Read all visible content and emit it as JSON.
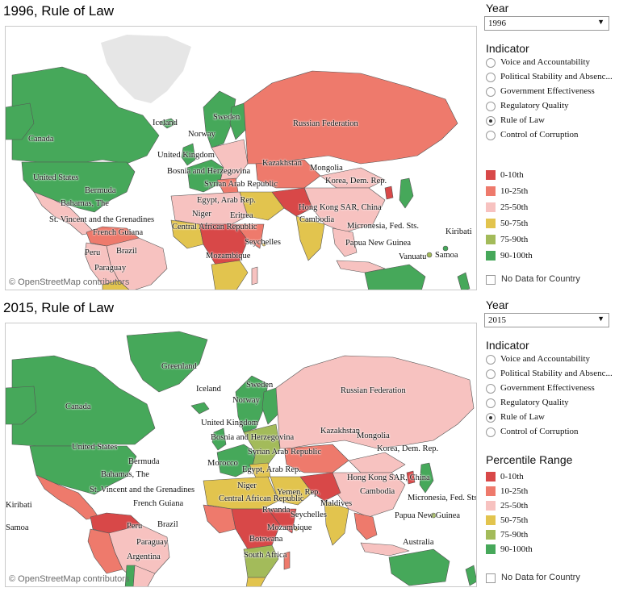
{
  "colors": {
    "p0_10": "#d84848",
    "p10_25": "#ee7a6c",
    "p25_50": "#f7c2c0",
    "p50_75": "#e2c44e",
    "p75_90": "#a3bb5a",
    "p90_100": "#46a85a",
    "ocean": "#ffffff",
    "greenland_1996": "#e6e6e6",
    "nodata": "#ffffff"
  },
  "attribution": "© OpenStreetMap contributors",
  "year_heading": "Year",
  "indicator_heading": "Indicator",
  "indicators": [
    "Voice and Accountability",
    "Political Stability and Absenc...",
    "Government Effectiveness",
    "Regulatory Quality",
    "Rule of Law",
    "Control of Corruption"
  ],
  "selected_indicator": "Rule of Law",
  "legend_title": "Percentile Range",
  "legend_items": [
    {
      "label": "0-10th",
      "color": "#d84848"
    },
    {
      "label": "10-25th",
      "color": "#ee7a6c"
    },
    {
      "label": "25-50th",
      "color": "#f7c2c0"
    },
    {
      "label": "50-75th",
      "color": "#e2c44e"
    },
    {
      "label": "75-90th",
      "color": "#a3bb5a"
    },
    {
      "label": "90-100th",
      "color": "#46a85a"
    }
  ],
  "no_data_label": "No Data for Country",
  "panels": [
    {
      "title": "1996, Rule of Law",
      "year": "1996",
      "show_legend_title": false,
      "labels": [
        "Iceland",
        "Sweden",
        "Norway",
        "Canada",
        "Russian Federation",
        "United Kingdom",
        "Bosnia and Herzegovina",
        "Kazakhstan",
        "Mongolia",
        "United States",
        "Syrian Arab Republic",
        "Korea, Dem. Rep.",
        "Egypt, Arab Rep.",
        "Bermuda",
        "Bahamas, The",
        "Hong Kong SAR, China",
        "Niger",
        "Eritrea",
        "Cambodia",
        "St. Vincent and the Grenadines",
        "Central African Republic",
        "Micronesia, Fed. Sts.",
        "French Guiana",
        "Kiribati",
        "Papua New Guinea",
        "Seychelles",
        "Peru",
        "Brazil",
        "Vanuatu",
        "Samoa",
        "Mozambique",
        "Paraguay"
      ]
    },
    {
      "title": "2015, Rule of Law",
      "year": "2015",
      "show_legend_title": true,
      "labels": [
        "Greenland",
        "Sweden",
        "Iceland",
        "Norway",
        "Russian Federation",
        "Canada",
        "United Kingdom",
        "Kazakhstan",
        "Bosnia and Herzegovina",
        "Mongolia",
        "United States",
        "Morocco",
        "Syrian Arab Republic",
        "Korea, Dem. Rep.",
        "Bermuda",
        "Egypt, Arab Rep.",
        "Bahamas, The",
        "Niger",
        "Hong Kong SAR, China",
        "St. Vincent and the Grenadines",
        "Yemen, Rep.",
        "Cambodia",
        "Kiribati",
        "Central African Republic",
        "Maldives",
        "Micronesia, Fed. Sts.",
        "French Guiana",
        "Papua New Guinea",
        "Samoa",
        "Rwanda",
        "Seychelles",
        "Peru",
        "Brazil",
        "Mozambique",
        "Paraguay",
        "Botswana",
        "Australia",
        "Argentina",
        "South Africa"
      ]
    }
  ]
}
